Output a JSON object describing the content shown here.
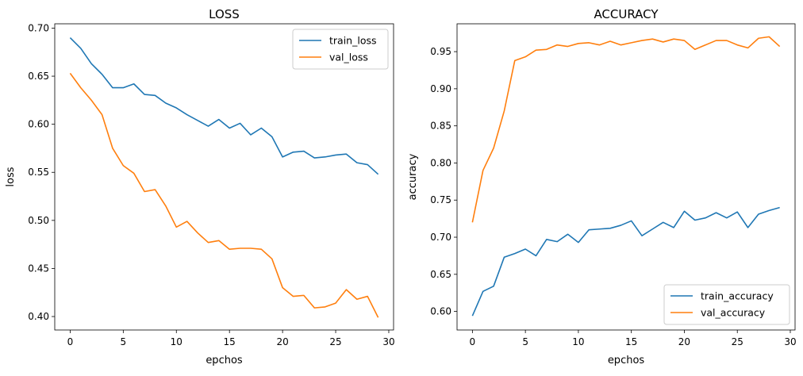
{
  "chart_data": [
    {
      "type": "line",
      "title": "LOSS",
      "xlabel": "epchos",
      "ylabel": "loss",
      "xlim": [
        -1.45,
        30.45
      ],
      "ylim": [
        0.386,
        0.7045
      ],
      "xticks": [
        0,
        5,
        10,
        15,
        20,
        25,
        30
      ],
      "yticks": [
        0.4,
        0.45,
        0.5,
        0.55,
        0.6,
        0.65,
        0.7
      ],
      "tick_decimals": 2,
      "grid": false,
      "legend_position": "top-right",
      "x": [
        0,
        1,
        2,
        3,
        4,
        5,
        6,
        7,
        8,
        9,
        10,
        11,
        12,
        13,
        14,
        15,
        16,
        17,
        18,
        19,
        20,
        21,
        22,
        23,
        24,
        25,
        26,
        27,
        28,
        29
      ],
      "series": [
        {
          "name": "train_loss",
          "color": "#1f77b4",
          "values": [
            0.69,
            0.679,
            0.663,
            0.652,
            0.638,
            0.638,
            0.642,
            0.631,
            0.63,
            0.622,
            0.617,
            0.61,
            0.604,
            0.598,
            0.605,
            0.596,
            0.601,
            0.589,
            0.596,
            0.587,
            0.566,
            0.571,
            0.572,
            0.565,
            0.566,
            0.568,
            0.569,
            0.56,
            0.558,
            0.548
          ]
        },
        {
          "name": "val_loss",
          "color": "#ff7f0e",
          "values": [
            0.653,
            0.638,
            0.625,
            0.61,
            0.575,
            0.557,
            0.549,
            0.53,
            0.532,
            0.515,
            0.493,
            0.499,
            0.487,
            0.477,
            0.479,
            0.47,
            0.471,
            0.471,
            0.47,
            0.46,
            0.43,
            0.421,
            0.422,
            0.409,
            0.41,
            0.414,
            0.428,
            0.418,
            0.421,
            0.399
          ]
        }
      ]
    },
    {
      "type": "line",
      "title": "ACCURACY",
      "xlabel": "epchos",
      "ylabel": "accuracy",
      "xlim": [
        -1.45,
        30.45
      ],
      "ylim": [
        0.575,
        0.9875
      ],
      "xticks": [
        0,
        5,
        10,
        15,
        20,
        25,
        30
      ],
      "yticks": [
        0.6,
        0.65,
        0.7,
        0.75,
        0.8,
        0.85,
        0.9,
        0.95
      ],
      "tick_decimals": 2,
      "grid": false,
      "legend_position": "bottom-right",
      "x": [
        0,
        1,
        2,
        3,
        4,
        5,
        6,
        7,
        8,
        9,
        10,
        11,
        12,
        13,
        14,
        15,
        16,
        17,
        18,
        19,
        20,
        21,
        22,
        23,
        24,
        25,
        26,
        27,
        28,
        29
      ],
      "series": [
        {
          "name": "train_accuracy",
          "color": "#1f77b4",
          "values": [
            0.594,
            0.627,
            0.634,
            0.673,
            0.678,
            0.684,
            0.675,
            0.697,
            0.694,
            0.704,
            0.693,
            0.71,
            0.711,
            0.712,
            0.716,
            0.722,
            0.702,
            0.711,
            0.72,
            0.713,
            0.735,
            0.723,
            0.726,
            0.733,
            0.726,
            0.734,
            0.713,
            0.731,
            0.736,
            0.74
          ]
        },
        {
          "name": "val_accuracy",
          "color": "#ff7f0e",
          "values": [
            0.72,
            0.79,
            0.82,
            0.87,
            0.938,
            0.943,
            0.952,
            0.953,
            0.959,
            0.957,
            0.961,
            0.962,
            0.959,
            0.964,
            0.959,
            0.962,
            0.965,
            0.967,
            0.963,
            0.967,
            0.965,
            0.953,
            0.959,
            0.965,
            0.965,
            0.959,
            0.955,
            0.968,
            0.97,
            0.957
          ]
        }
      ]
    }
  ]
}
